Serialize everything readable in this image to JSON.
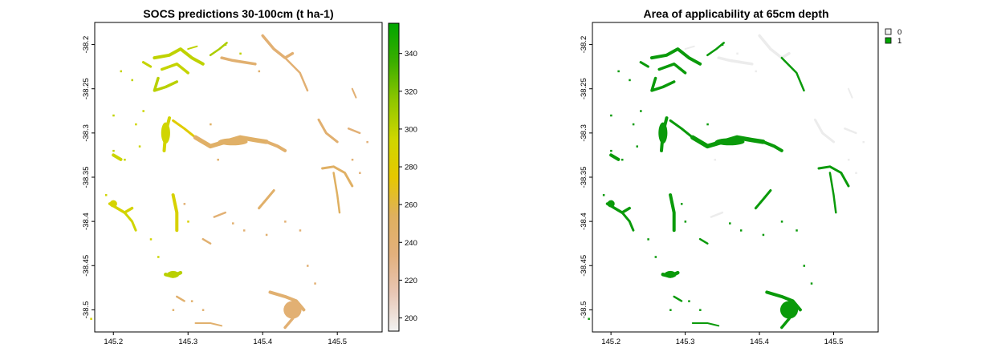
{
  "panels": [
    {
      "title": "SOCS predictions 30-100cm (t ha-1)",
      "x_ticks": [
        "145.2",
        "145.3",
        "145.4",
        "145.5"
      ],
      "y_ticks": [
        "-38.2",
        "-38.25",
        "-38.3",
        "-38.35",
        "-38.4",
        "-38.45",
        "-38.5"
      ],
      "legend": {
        "type": "colorbar",
        "range": [
          193,
          356
        ],
        "ticks": [
          "200",
          "220",
          "240",
          "260",
          "280",
          "300",
          "320",
          "340"
        ],
        "colors": [
          "#f2f2f2",
          "#e8c6b4",
          "#e3b07c",
          "#dfb05e",
          "#e6c800",
          "#cfd600",
          "#8fc600",
          "#3bae00",
          "#00a600"
        ]
      }
    },
    {
      "title": "Area of applicability at 65cm depth",
      "x_ticks": [
        "145.2",
        "145.3",
        "145.4",
        "145.5"
      ],
      "y_ticks": [
        "-38.2",
        "-38.25",
        "-38.3",
        "-38.35",
        "-38.4",
        "-38.45",
        "-38.5"
      ],
      "legend": {
        "type": "categorical",
        "items": [
          {
            "label": "0",
            "color": "#f2f2f2"
          },
          {
            "label": "1",
            "color": "#00a600"
          }
        ]
      }
    }
  ],
  "map_data": {
    "extent": {
      "lon": [
        145.175,
        145.56
      ],
      "lat": [
        -38.525,
        -38.175
      ]
    },
    "colors": {
      "aoa_inside": "#0a9a0a",
      "aoa_outside": "#ececec"
    },
    "features": [
      {
        "pts": [
          [
            145.255,
            -38.215
          ],
          [
            145.275,
            -38.212
          ],
          [
            145.29,
            -38.205
          ],
          [
            145.305,
            -38.215
          ],
          [
            145.32,
            -38.222
          ]
        ],
        "v": 300,
        "w": 4,
        "aoa": 1
      },
      {
        "pts": [
          [
            145.265,
            -38.228
          ],
          [
            145.285,
            -38.222
          ],
          [
            145.3,
            -38.232
          ]
        ],
        "v": 298,
        "w": 3.5,
        "aoa": 1
      },
      {
        "pts": [
          [
            145.26,
            -38.238
          ],
          [
            145.255,
            -38.252
          ],
          [
            145.27,
            -38.248
          ],
          [
            145.285,
            -38.242
          ]
        ],
        "v": 302,
        "w": 3.5,
        "aoa": 1
      },
      {
        "pts": [
          [
            145.33,
            -38.212
          ],
          [
            145.342,
            -38.205
          ],
          [
            145.352,
            -38.198
          ]
        ],
        "v": 306,
        "w": 2.5,
        "aoa": 1
      },
      {
        "pts": [
          [
            145.3,
            -38.205
          ],
          [
            145.312,
            -38.202
          ]
        ],
        "v": 300,
        "w": 2,
        "aoa": 0
      },
      {
        "pts": [
          [
            145.345,
            -38.215
          ],
          [
            145.36,
            -38.218
          ],
          [
            145.375,
            -38.22
          ],
          [
            145.39,
            -38.222
          ]
        ],
        "v": 242,
        "w": 3.5,
        "aoa": 0
      },
      {
        "pts": [
          [
            145.4,
            -38.19
          ],
          [
            145.415,
            -38.205
          ],
          [
            145.43,
            -38.215
          ],
          [
            145.44,
            -38.21
          ]
        ],
        "v": 240,
        "w": 3.5,
        "aoa": 0
      },
      {
        "pts": [
          [
            145.43,
            -38.215
          ],
          [
            145.45,
            -38.232
          ],
          [
            145.46,
            -38.252
          ]
        ],
        "v": 240,
        "w": 2.5,
        "aoa": 1
      },
      {
        "pts": [
          [
            145.275,
            -38.283
          ],
          [
            145.27,
            -38.3
          ],
          [
            145.268,
            -38.32
          ]
        ],
        "v": 292,
        "w": 4,
        "aoa": 1
      },
      {
        "pts": [
          [
            145.28,
            -38.286
          ],
          [
            145.295,
            -38.295
          ],
          [
            145.31,
            -38.305
          ]
        ],
        "v": 280,
        "w": 3,
        "aoa": 1
      },
      {
        "pts": [
          [
            145.31,
            -38.305
          ],
          [
            145.33,
            -38.315
          ],
          [
            145.35,
            -38.31
          ],
          [
            145.37,
            -38.305
          ],
          [
            145.39,
            -38.308
          ],
          [
            145.405,
            -38.31
          ]
        ],
        "v": 248,
        "w": 5.5,
        "aoa": 1
      },
      {
        "pts": [
          [
            145.405,
            -38.31
          ],
          [
            145.42,
            -38.315
          ],
          [
            145.43,
            -38.32
          ]
        ],
        "v": 244,
        "w": 4,
        "aoa": 1
      },
      {
        "pts": [
          [
            145.475,
            -38.285
          ],
          [
            145.485,
            -38.3
          ],
          [
            145.5,
            -38.31
          ]
        ],
        "v": 242,
        "w": 3,
        "aoa": 0
      },
      {
        "pts": [
          [
            145.515,
            -38.295
          ],
          [
            145.53,
            -38.3
          ]
        ],
        "v": 238,
        "w": 2.5,
        "aoa": 0
      },
      {
        "pts": [
          [
            145.48,
            -38.34
          ],
          [
            145.495,
            -38.338
          ],
          [
            145.51,
            -38.345
          ],
          [
            145.52,
            -38.36
          ]
        ],
        "v": 250,
        "w": 3,
        "aoa": 1
      },
      {
        "pts": [
          [
            145.495,
            -38.345
          ],
          [
            145.5,
            -38.37
          ],
          [
            145.503,
            -38.39
          ]
        ],
        "v": 252,
        "w": 2.5,
        "aoa": 1
      },
      {
        "pts": [
          [
            145.2,
            -38.325
          ],
          [
            145.21,
            -38.33
          ]
        ],
        "v": 296,
        "w": 4,
        "aoa": 1
      },
      {
        "pts": [
          [
            145.195,
            -38.38
          ],
          [
            145.205,
            -38.385
          ],
          [
            145.215,
            -38.39
          ],
          [
            145.225,
            -38.385
          ]
        ],
        "v": 290,
        "w": 3.5,
        "aoa": 1
      },
      {
        "pts": [
          [
            145.215,
            -38.39
          ],
          [
            145.225,
            -38.4
          ],
          [
            145.23,
            -38.41
          ]
        ],
        "v": 294,
        "w": 3,
        "aoa": 1
      },
      {
        "pts": [
          [
            145.28,
            -38.37
          ],
          [
            145.285,
            -38.39
          ],
          [
            145.285,
            -38.41
          ]
        ],
        "v": 288,
        "w": 4,
        "aoa": 1
      },
      {
        "pts": [
          [
            145.395,
            -38.385
          ],
          [
            145.405,
            -38.375
          ],
          [
            145.415,
            -38.365
          ]
        ],
        "v": 246,
        "w": 3,
        "aoa": 1
      },
      {
        "pts": [
          [
            145.335,
            -38.395
          ],
          [
            145.35,
            -38.39
          ]
        ],
        "v": 240,
        "w": 2.5,
        "aoa": 0
      },
      {
        "pts": [
          [
            145.32,
            -38.42
          ],
          [
            145.33,
            -38.425
          ]
        ],
        "v": 242,
        "w": 2.5,
        "aoa": 1
      },
      {
        "pts": [
          [
            145.27,
            -38.46
          ],
          [
            145.28,
            -38.462
          ],
          [
            145.29,
            -38.458
          ]
        ],
        "v": 302,
        "w": 4.5,
        "aoa": 1
      },
      {
        "pts": [
          [
            145.285,
            -38.485
          ],
          [
            145.295,
            -38.49
          ]
        ],
        "v": 244,
        "w": 2.5,
        "aoa": 1
      },
      {
        "pts": [
          [
            145.41,
            -38.48
          ],
          [
            145.43,
            -38.485
          ],
          [
            145.445,
            -38.49
          ],
          [
            145.455,
            -38.5
          ]
        ],
        "v": 242,
        "w": 4,
        "aoa": 1
      },
      {
        "pts": [
          [
            145.45,
            -38.495
          ],
          [
            145.44,
            -38.51
          ],
          [
            145.43,
            -38.52
          ]
        ],
        "v": 240,
        "w": 3.5,
        "aoa": 1
      },
      {
        "pts": [
          [
            145.31,
            -38.515
          ],
          [
            145.33,
            -38.515
          ],
          [
            145.345,
            -38.518
          ]
        ],
        "v": 244,
        "w": 2,
        "aoa": 1
      },
      {
        "pts": [
          [
            145.52,
            -38.25
          ],
          [
            145.525,
            -38.26
          ]
        ],
        "v": 240,
        "w": 2,
        "aoa": 0
      },
      {
        "pts": [
          [
            145.24,
            -38.22
          ],
          [
            145.25,
            -38.225
          ]
        ],
        "v": 298,
        "w": 3,
        "aoa": 1
      }
    ],
    "blobs": [
      {
        "c": [
          145.44,
          -38.5
        ],
        "r": [
          0.012,
          0.01
        ],
        "v": 240,
        "aoa": 1
      },
      {
        "c": [
          145.28,
          -38.46
        ],
        "r": [
          0.008,
          0.004
        ],
        "v": 302,
        "aoa": 1
      },
      {
        "c": [
          145.27,
          -38.3
        ],
        "r": [
          0.006,
          0.012
        ],
        "v": 294,
        "aoa": 1
      },
      {
        "c": [
          145.36,
          -38.31
        ],
        "r": [
          0.02,
          0.004
        ],
        "v": 248,
        "aoa": 1
      },
      {
        "c": [
          145.2,
          -38.38
        ],
        "r": [
          0.005,
          0.004
        ],
        "v": 290,
        "aoa": 1
      }
    ],
    "specks": [
      [
        145.17,
        -38.51,
        290,
        1
      ],
      [
        145.2,
        -38.32,
        300,
        1
      ],
      [
        145.215,
        -38.33,
        298,
        1
      ],
      [
        145.235,
        -38.315,
        296,
        1
      ],
      [
        145.23,
        -38.29,
        294,
        1
      ],
      [
        145.24,
        -38.275,
        296,
        1
      ],
      [
        145.295,
        -38.38,
        240,
        1
      ],
      [
        145.3,
        -38.4,
        286,
        1
      ],
      [
        145.36,
        -38.402,
        242,
        1
      ],
      [
        145.375,
        -38.41,
        240,
        1
      ],
      [
        145.305,
        -38.49,
        244,
        1
      ],
      [
        145.32,
        -38.5,
        242,
        1
      ],
      [
        145.28,
        -38.5,
        246,
        1
      ],
      [
        145.405,
        -38.415,
        242,
        1
      ],
      [
        145.43,
        -38.4,
        240,
        1
      ],
      [
        145.45,
        -38.41,
        240,
        1
      ],
      [
        145.225,
        -38.24,
        300,
        1
      ],
      [
        145.21,
        -38.23,
        298,
        1
      ],
      [
        145.2,
        -38.28,
        300,
        1
      ],
      [
        145.19,
        -38.37,
        294,
        1
      ],
      [
        145.52,
        -38.33,
        240,
        0
      ],
      [
        145.53,
        -38.345,
        238,
        0
      ],
      [
        145.54,
        -38.31,
        236,
        0
      ],
      [
        145.33,
        -38.29,
        250,
        1
      ],
      [
        145.34,
        -38.33,
        246,
        0
      ],
      [
        145.35,
        -38.2,
        304,
        1
      ],
      [
        145.37,
        -38.21,
        300,
        0
      ],
      [
        145.395,
        -38.23,
        244,
        0
      ],
      [
        145.46,
        -38.45,
        240,
        1
      ],
      [
        145.47,
        -38.47,
        240,
        1
      ],
      [
        145.25,
        -38.42,
        292,
        1
      ],
      [
        145.26,
        -38.44,
        296,
        1
      ]
    ]
  }
}
